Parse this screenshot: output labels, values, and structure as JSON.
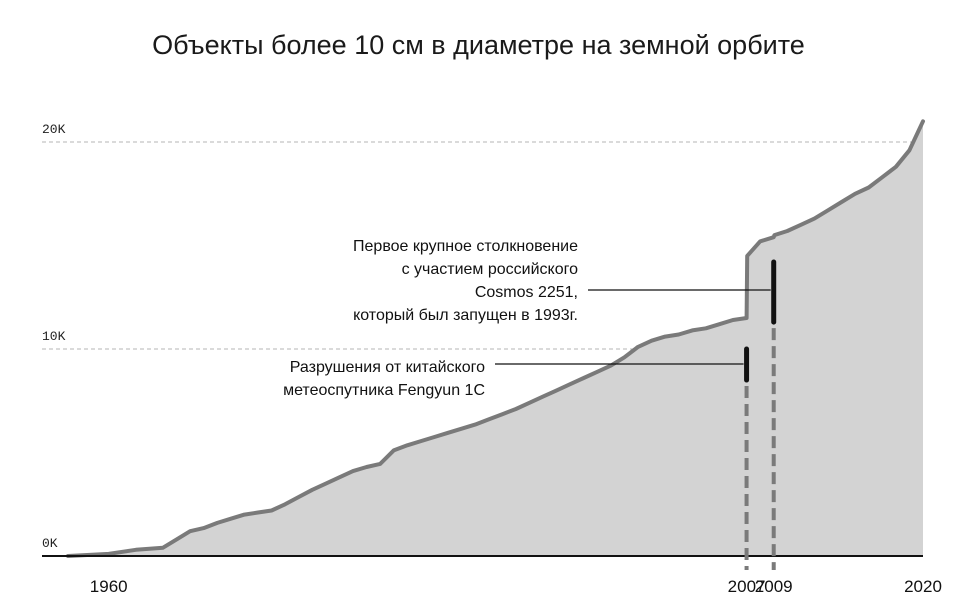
{
  "chart_data": {
    "type": "area",
    "title": "Объекты более 10 см в диаметре на земной орбите",
    "xlabel": "",
    "ylabel": "",
    "xlim": [
      1957,
      2020
    ],
    "ylim": [
      0,
      20000
    ],
    "y_ticks": [
      {
        "value": 0,
        "label": "0K"
      },
      {
        "value": 10000,
        "label": "10K"
      },
      {
        "value": 20000,
        "label": "20K"
      }
    ],
    "x_ticks": [
      {
        "value": 1960,
        "label": "1960"
      },
      {
        "value": 2007,
        "label": "2007"
      },
      {
        "value": 2009,
        "label": "2009"
      },
      {
        "value": 2020,
        "label": "2020"
      }
    ],
    "grid": "horizontal dashed at 10K and 20K",
    "colors": {
      "area": "#d3d3d3",
      "line": "#7a7a7a",
      "highlight": "#111111",
      "grid": "#b5b5b5",
      "axis": "#111111"
    },
    "series": [
      {
        "x": [
          1957,
          1960,
          1962,
          1964,
          1965,
          1966,
          1967,
          1968,
          1969,
          1970,
          1971,
          1972,
          1973,
          1974,
          1975,
          1976,
          1977,
          1978,
          1979,
          1980,
          1981,
          1982,
          1983,
          1984,
          1985,
          1986,
          1987,
          1988,
          1989,
          1990,
          1991,
          1992,
          1993,
          1994,
          1995,
          1996,
          1997,
          1998,
          1999,
          2000,
          2001,
          2002,
          2003,
          2004,
          2005,
          2006,
          2007,
          2007.05,
          2008,
          2009,
          2009.05,
          2010,
          2011,
          2012,
          2013,
          2014,
          2015,
          2016,
          2017,
          2018,
          2019,
          2020
        ],
        "y": [
          0,
          100,
          300,
          400,
          800,
          1200,
          1350,
          1600,
          1800,
          2000,
          2100,
          2200,
          2500,
          2850,
          3200,
          3500,
          3800,
          4100,
          4300,
          4450,
          5100,
          5350,
          5550,
          5750,
          5950,
          6150,
          6350,
          6600,
          6850,
          7100,
          7400,
          7700,
          8000,
          8300,
          8600,
          8900,
          9200,
          9600,
          10100,
          10400,
          10600,
          10700,
          10900,
          11000,
          11200,
          11400,
          11500,
          14500,
          15200,
          15400,
          15500,
          15700,
          16000,
          16300,
          16700,
          17100,
          17500,
          17800,
          18300,
          18800,
          19600,
          21000
        ]
      }
    ],
    "highlights": [
      {
        "x": 2007,
        "from": 8500,
        "to": 10000
      },
      {
        "x": 2009,
        "from": 11300,
        "to": 14200
      }
    ],
    "annotations": [
      {
        "x": 2007,
        "lines": [
          "Разрушения от китайского",
          "метеоспутника Fengyun 1C"
        ]
      },
      {
        "x": 2009,
        "lines": [
          "Первое крупное столкновение",
          "с участием российского",
          "Cosmos 2251,",
          "который был запущен в 1993г."
        ]
      }
    ]
  }
}
